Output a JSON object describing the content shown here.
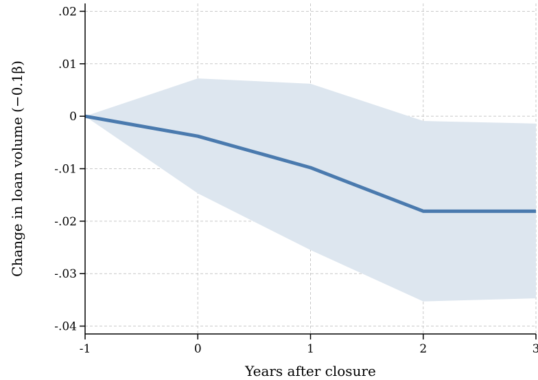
{
  "chart_data": {
    "type": "line",
    "xlabel": "Years after closure",
    "ylabel": "Change in loan volume (−0.1β)",
    "xlim": [
      -1,
      3
    ],
    "ylim": [
      -0.0415,
      0.0215
    ],
    "x_ticks": [
      -1,
      0,
      1,
      2,
      3
    ],
    "x_tick_labels": [
      "-1",
      "0",
      "1",
      "2",
      "3"
    ],
    "y_ticks": [
      0.02,
      0.01,
      0,
      -0.01,
      -0.02,
      -0.03,
      -0.04
    ],
    "y_tick_labels": [
      ".02",
      ".01",
      "0",
      "-.01",
      "-.02",
      "-.03",
      "-.04"
    ],
    "grid": true,
    "series": [
      {
        "x": [
          -1,
          0,
          1,
          2,
          3
        ],
        "values": [
          0.0,
          -0.0038,
          -0.0098,
          -0.0181,
          -0.0181
        ],
        "ci_lower": [
          0.0,
          -0.0147,
          -0.0255,
          -0.0353,
          -0.0347
        ],
        "ci_upper": [
          0.0,
          0.0072,
          0.0062,
          -0.0009,
          -0.0014
        ]
      }
    ],
    "colors": {
      "line": "#4a7aae",
      "band": "#dde6ef",
      "grid": "#c8c8c8",
      "axis": "#000000"
    }
  }
}
